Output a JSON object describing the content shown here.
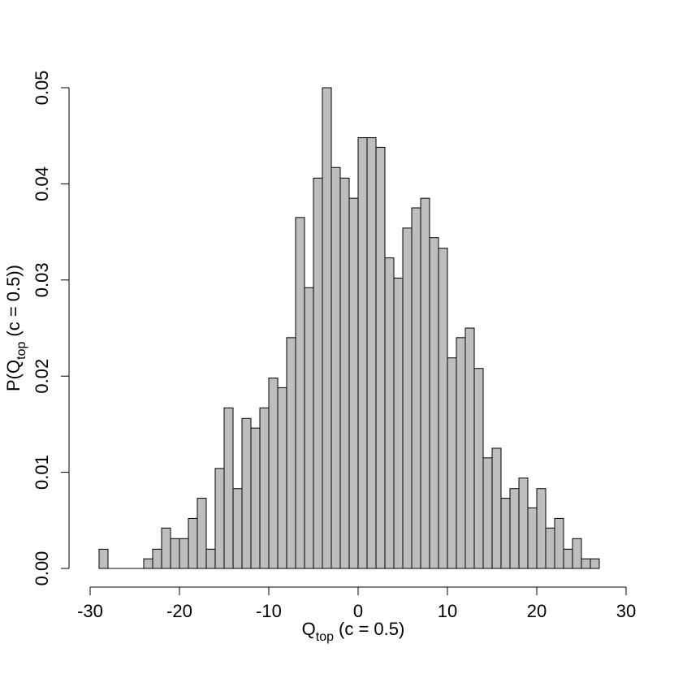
{
  "chart_data": {
    "type": "histogram",
    "x_label": {
      "main": "Q",
      "sub": "top",
      "rest": "(c = 0.5)"
    },
    "y_label": {
      "pre": "P(",
      "main": "Q",
      "sub": "top",
      "rest": "(c = 0.5))"
    },
    "bins": [
      -29,
      -28,
      -27,
      -26,
      -25,
      -24,
      -23,
      -22,
      -21,
      -20,
      -19,
      -18,
      -17,
      -16,
      -15,
      -14,
      -13,
      -12,
      -11,
      -10,
      -9,
      -8,
      -7,
      -6,
      -5,
      -4,
      -3,
      -2,
      -1,
      0,
      1,
      2,
      3,
      4,
      5,
      6,
      7,
      8,
      9,
      10,
      11,
      12,
      13,
      14,
      15,
      16,
      17,
      18,
      19,
      20,
      21,
      22,
      23,
      24,
      25,
      26,
      27
    ],
    "values": [
      0.002,
      0,
      0,
      0,
      0,
      0.001,
      0.002,
      0.0042,
      0.0031,
      0.0031,
      0.0052,
      0.0073,
      0.002,
      0.0104,
      0.0167,
      0.0083,
      0.0156,
      0.0146,
      0.0167,
      0.0198,
      0.0188,
      0.024,
      0.0365,
      0.0292,
      0.0406,
      0.05,
      0.0417,
      0.0406,
      0.0385,
      0.0448,
      0.0448,
      0.0438,
      0.0323,
      0.0302,
      0.0354,
      0.0375,
      0.0385,
      0.0344,
      0.0333,
      0.0219,
      0.024,
      0.025,
      0.0208,
      0.0115,
      0.0125,
      0.0073,
      0.0083,
      0.0094,
      0.0063,
      0.0083,
      0.0042,
      0.0052,
      0.002,
      0.0031,
      0.001,
      0.001
    ],
    "color": "#bebebe",
    "xlim": [
      -30,
      30
    ],
    "xticks": [
      -30,
      -20,
      -10,
      0,
      10,
      20,
      30
    ],
    "ylim": [
      0,
      0.05
    ],
    "yticks": [
      {
        "value": 0,
        "label": "0.00"
      },
      {
        "value": 0.01,
        "label": "0.01"
      },
      {
        "value": 0.02,
        "label": "0.02"
      },
      {
        "value": 0.03,
        "label": "0.03"
      },
      {
        "value": 0.04,
        "label": "0.04"
      },
      {
        "value": 0.05,
        "label": "0.05"
      }
    ]
  }
}
